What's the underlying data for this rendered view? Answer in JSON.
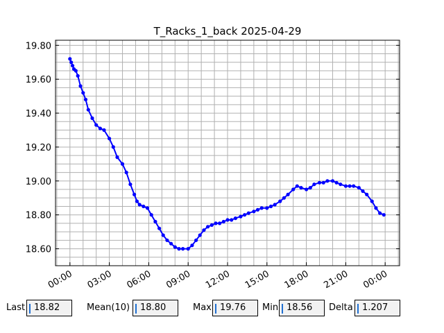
{
  "chart_data": {
    "type": "line",
    "title": "T_Racks_1_back 2025-04-29",
    "xlabel": "",
    "ylabel": "",
    "x_ticks": [
      "00:00",
      "03:00",
      "06:00",
      "09:00",
      "12:00",
      "15:00",
      "18:00",
      "21:00",
      "00:00"
    ],
    "x_tick_hours": [
      0,
      3,
      6,
      9,
      12,
      15,
      18,
      21,
      24
    ],
    "xlim_hours": [
      -1.1,
      25.1
    ],
    "y_ticks": [
      "18.60",
      "18.80",
      "19.00",
      "19.20",
      "19.40",
      "19.60",
      "19.80"
    ],
    "y_tick_values": [
      18.6,
      18.8,
      19.0,
      19.2,
      19.4,
      19.6,
      19.8
    ],
    "ylim": [
      18.5,
      19.83
    ],
    "grid": true,
    "series": [
      {
        "color": "#0000ff",
        "marker": "dot",
        "x_hours": [
          0.0,
          0.1,
          0.2,
          0.3,
          0.45,
          0.6,
          0.8,
          1.0,
          1.2,
          1.4,
          1.7,
          2.0,
          2.3,
          2.6,
          3.0,
          3.3,
          3.6,
          4.0,
          4.3,
          4.6,
          4.9,
          5.1,
          5.3,
          5.6,
          5.9,
          6.2,
          6.5,
          6.8,
          7.1,
          7.4,
          7.7,
          8.0,
          8.3,
          8.6,
          9.0,
          9.3,
          9.6,
          9.9,
          10.2,
          10.5,
          10.8,
          11.1,
          11.4,
          11.7,
          12.0,
          12.3,
          12.6,
          13.0,
          13.3,
          13.6,
          14.0,
          14.3,
          14.6,
          15.0,
          15.3,
          15.6,
          16.0,
          16.3,
          16.6,
          17.0,
          17.3,
          17.6,
          18.0,
          18.3,
          18.6,
          19.0,
          19.3,
          19.6,
          20.0,
          20.3,
          20.6,
          21.0,
          21.3,
          21.6,
          22.0,
          22.3,
          22.6,
          23.0,
          23.3,
          23.6,
          23.9
        ],
        "values": [
          19.72,
          19.7,
          19.68,
          19.66,
          19.65,
          19.62,
          19.56,
          19.52,
          19.48,
          19.42,
          19.37,
          19.33,
          19.31,
          19.3,
          19.25,
          19.2,
          19.14,
          19.1,
          19.05,
          18.98,
          18.92,
          18.88,
          18.86,
          18.85,
          18.84,
          18.8,
          18.76,
          18.72,
          18.68,
          18.65,
          18.63,
          18.61,
          18.6,
          18.6,
          18.6,
          18.62,
          18.65,
          18.68,
          18.71,
          18.73,
          18.74,
          18.75,
          18.75,
          18.76,
          18.77,
          18.77,
          18.78,
          18.79,
          18.8,
          18.81,
          18.82,
          18.83,
          18.84,
          18.84,
          18.85,
          18.86,
          18.88,
          18.9,
          18.92,
          18.95,
          18.97,
          18.96,
          18.95,
          18.96,
          18.98,
          18.99,
          18.99,
          19.0,
          19.0,
          18.99,
          18.98,
          18.97,
          18.97,
          18.97,
          18.96,
          18.94,
          18.92,
          18.88,
          18.84,
          18.81,
          18.8
        ]
      }
    ]
  },
  "stats": {
    "last_label": "Last",
    "last_value": "18.82",
    "mean_label": "Mean(10)",
    "mean_value": "18.80",
    "max_label": "Max",
    "max_value": "19.76",
    "min_label": "Min",
    "min_value": "18.56",
    "delta_label": "Delta",
    "delta_value": "1.207"
  }
}
